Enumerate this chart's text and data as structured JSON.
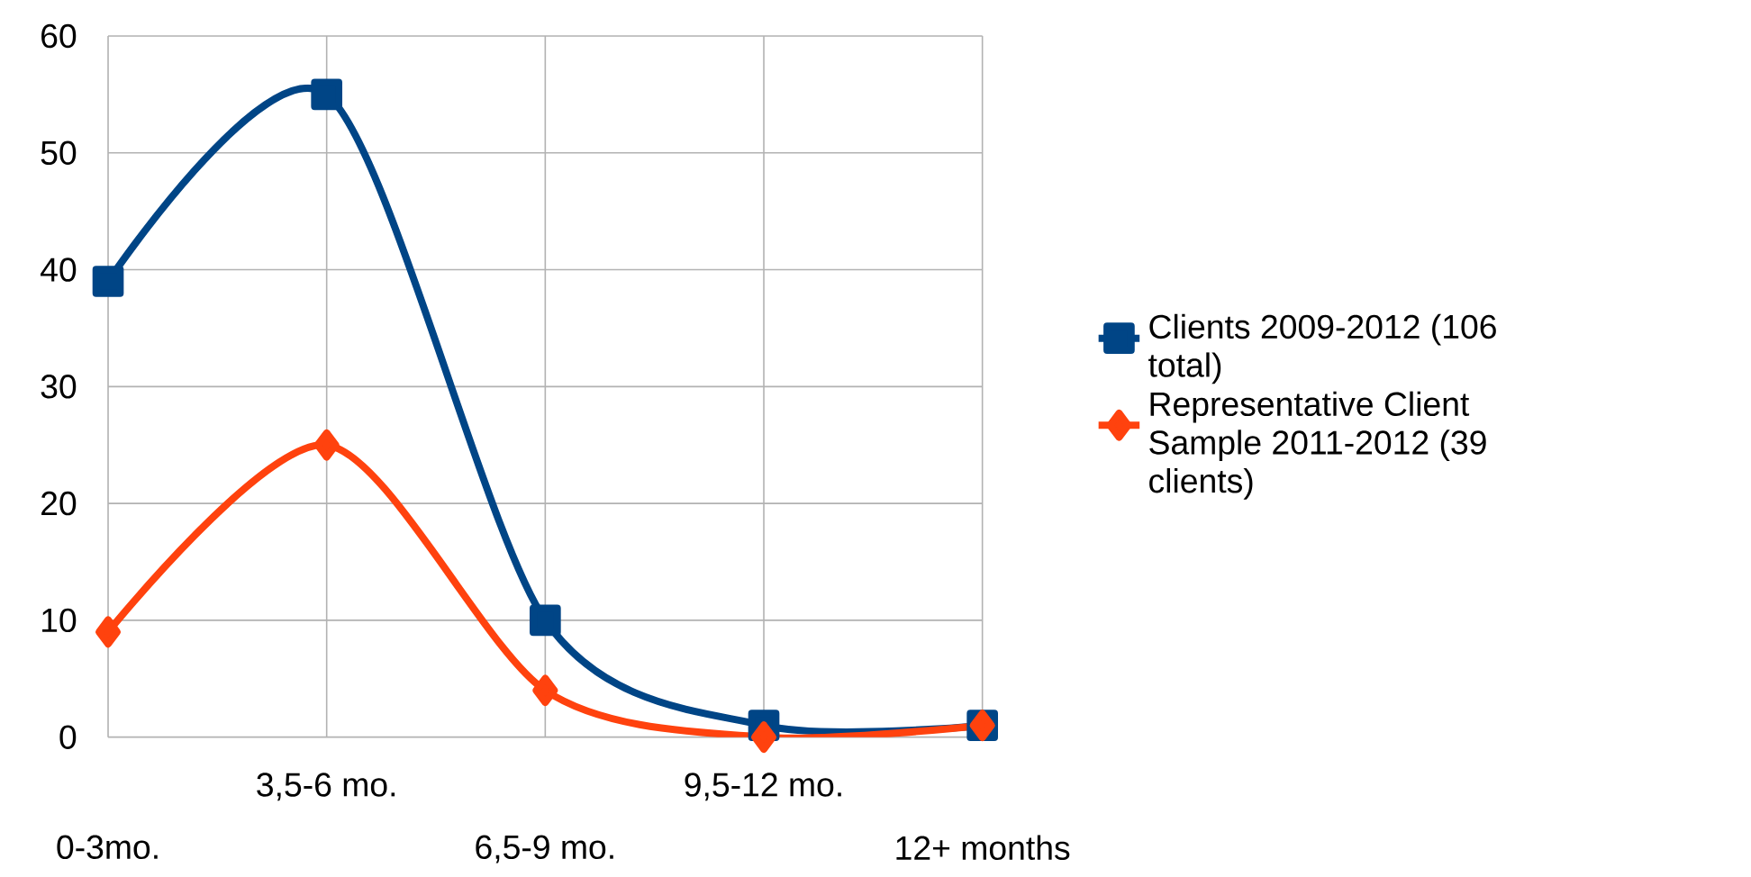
{
  "chart_data": {
    "type": "line",
    "categories": [
      "0-3mo.",
      "3,5-6 mo.",
      "6,5-9 mo.",
      "9,5-12 mo.",
      "12+ months"
    ],
    "series": [
      {
        "name": "Clients 2009-2012 (106 total)",
        "color": "#004586",
        "marker": "square",
        "values": [
          39,
          55,
          10,
          1,
          1
        ]
      },
      {
        "name": "Representative Client Sample 2011-2012 (39 clients)",
        "color": "#ff420e",
        "marker": "diamond",
        "values": [
          9,
          25,
          4,
          0,
          1
        ]
      }
    ],
    "ylim": [
      0,
      60
    ],
    "yticks": [
      0,
      10,
      20,
      30,
      40,
      50,
      60
    ],
    "grid": true,
    "legend": "right"
  }
}
